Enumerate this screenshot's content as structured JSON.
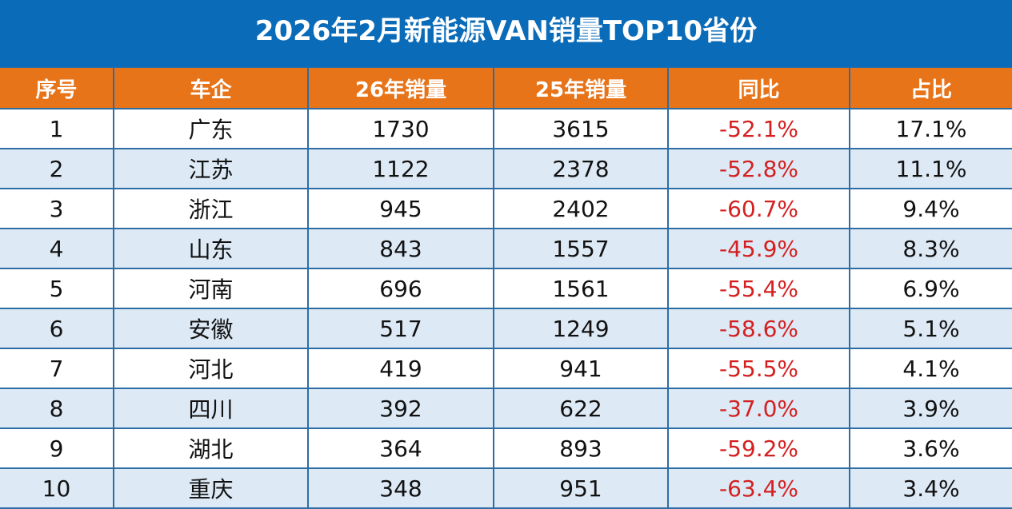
{
  "title": "2026年2月新能源VAN销量TOP10省份",
  "colors": {
    "title_bg": "#0a6bb8",
    "header_bg": "#e8741a",
    "alt_row_bg": "#dde9f5",
    "negative": "#d42020",
    "grid": "#2e6da4"
  },
  "table": {
    "headers": [
      "序号",
      "车企",
      "26年销量",
      "25年销量",
      "同比",
      "占比"
    ],
    "rows": [
      [
        "1",
        "广东",
        "1730",
        "3615",
        "-52.1%",
        "17.1%"
      ],
      [
        "2",
        "江苏",
        "1122",
        "2378",
        "-52.8%",
        "11.1%"
      ],
      [
        "3",
        "浙江",
        "945",
        "2402",
        "-60.7%",
        "9.4%"
      ],
      [
        "4",
        "山东",
        "843",
        "1557",
        "-45.9%",
        "8.3%"
      ],
      [
        "5",
        "河南",
        "696",
        "1561",
        "-55.4%",
        "6.9%"
      ],
      [
        "6",
        "安徽",
        "517",
        "1249",
        "-58.6%",
        "5.1%"
      ],
      [
        "7",
        "河北",
        "419",
        "941",
        "-55.5%",
        "4.1%"
      ],
      [
        "8",
        "四川",
        "392",
        "622",
        "-37.0%",
        "3.9%"
      ],
      [
        "9",
        "湖北",
        "364",
        "893",
        "-59.2%",
        "3.6%"
      ],
      [
        "10",
        "重庆",
        "348",
        "951",
        "-63.4%",
        "3.4%"
      ]
    ]
  },
  "chart_data": {
    "type": "table",
    "title": "2026年2月新能源VAN销量TOP10省份",
    "columns": [
      "序号",
      "车企",
      "26年销量",
      "25年销量",
      "同比",
      "占比"
    ],
    "categories": [
      "广东",
      "江苏",
      "浙江",
      "山东",
      "河南",
      "安徽",
      "河北",
      "四川",
      "湖北",
      "重庆"
    ],
    "series": [
      {
        "name": "26年销量",
        "values": [
          1730,
          1122,
          945,
          843,
          696,
          517,
          419,
          392,
          364,
          348
        ]
      },
      {
        "name": "25年销量",
        "values": [
          3615,
          2378,
          2402,
          1557,
          1561,
          1249,
          941,
          622,
          893,
          951
        ]
      },
      {
        "name": "同比(%)",
        "values": [
          -52.1,
          -52.8,
          -60.7,
          -45.9,
          -55.4,
          -58.6,
          -55.5,
          -37.0,
          -59.2,
          -63.4
        ]
      },
      {
        "name": "占比(%)",
        "values": [
          17.1,
          11.1,
          9.4,
          8.3,
          6.9,
          5.1,
          4.1,
          3.9,
          3.6,
          3.4
        ]
      }
    ]
  }
}
